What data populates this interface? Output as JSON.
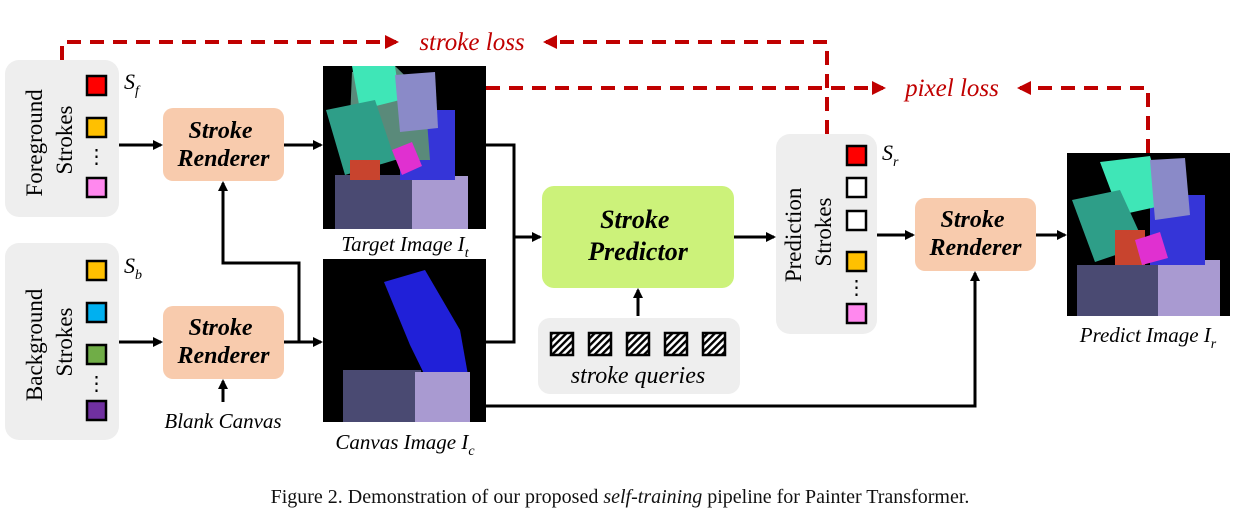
{
  "groups": {
    "foreground": {
      "label": "Foreground\nStrokes",
      "symbol": "S",
      "subscript": "f"
    },
    "background": {
      "label": "Background\nStrokes",
      "symbol": "S",
      "subscript": "b"
    },
    "prediction": {
      "label": "Prediction\nStrokes",
      "symbol": "S",
      "subscript": "r"
    }
  },
  "boxes": {
    "renderer_top": "Stroke\nRenderer",
    "renderer_bottom": "Stroke\nRenderer",
    "renderer_right": "Stroke\nRenderer",
    "predictor": "Stroke\nPredictor"
  },
  "labels": {
    "blank_canvas": "Blank Canvas",
    "stroke_queries": "stroke queries",
    "stroke_loss": "stroke loss",
    "pixel_loss": "pixel loss",
    "target_image": {
      "text": "Target Image I",
      "sub": "t"
    },
    "canvas_image": {
      "text": "Canvas Image I",
      "sub": "c"
    },
    "predict_image": {
      "text": "Predict Image I",
      "sub": "r"
    }
  },
  "ellipsis": "⋮",
  "caption": {
    "before": "Figure 2. Demonstration of our proposed ",
    "italic": "self-training",
    "after": " pipeline for Painter Transformer."
  },
  "colors": {
    "loss_red": "#c00000",
    "renderer_fill": "#f8cbad",
    "predictor_fill": "#ccf27a",
    "panel_fill": "#eeeeee",
    "stroke_red": "#ff0000",
    "stroke_orange": "#ffc000",
    "stroke_pink": "#ff88ee",
    "stroke_blue": "#00b0f0",
    "stroke_green": "#70ad47",
    "stroke_purple": "#7030a0",
    "stroke_empty": "#ffffff"
  }
}
